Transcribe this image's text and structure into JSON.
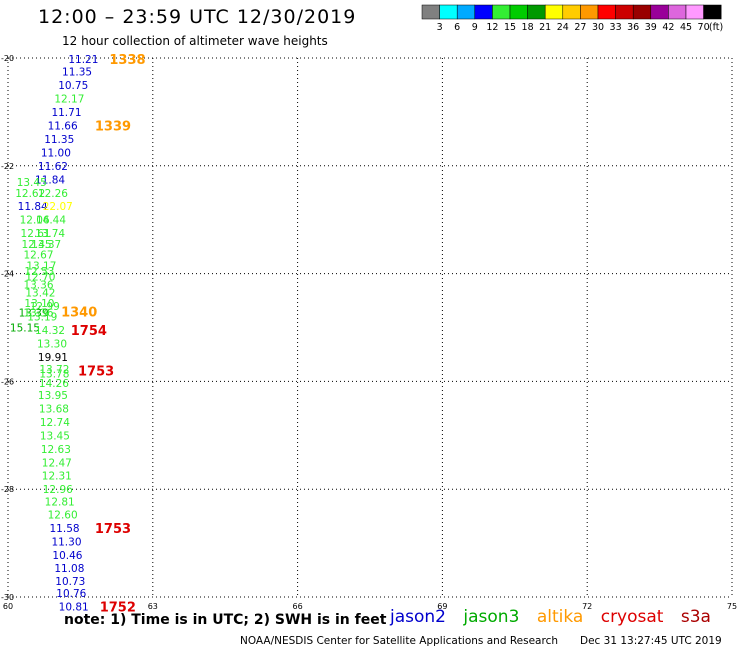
{
  "title": "12:00 – 23:59 UTC 12/30/2019",
  "subtitle": "12 hour collection of altimeter wave heights",
  "note": "note:  1) Time is in UTC; 2) SWH is in feet",
  "credit": "NOAA/NESDIS Center for Satellite Applications and Research",
  "timestamp": "Dec 31 13:27:45 UTC 2019",
  "satellites": [
    {
      "name": "jason2",
      "color": "#0000cc"
    },
    {
      "name": "jason3",
      "color": "#00aa00"
    },
    {
      "name": "altika",
      "color": "#ff9900"
    },
    {
      "name": "cryosat",
      "color": "#dd0000"
    },
    {
      "name": "s3a",
      "color": "#aa0000"
    }
  ],
  "colorbar": {
    "labels": [
      "3",
      "6",
      "9",
      "12",
      "15",
      "18",
      "21",
      "24",
      "27",
      "30",
      "33",
      "36",
      "39",
      "42",
      "45",
      "70"
    ],
    "unit": "(ft)",
    "colors": [
      "#808080",
      "#00ffff",
      "#00aaff",
      "#0000ff",
      "#33ee33",
      "#00cc00",
      "#009900",
      "#ffff00",
      "#ffcc00",
      "#ff9900",
      "#ff0000",
      "#cc0000",
      "#990000",
      "#990099",
      "#dd66dd",
      "#ff99ff",
      "#000000"
    ]
  },
  "chart_data": {
    "type": "scatter",
    "title": "12:00 – 23:59 UTC 12/30/2019",
    "subtitle": "12 hour collection of altimeter wave heights",
    "xlim": [
      60,
      75
    ],
    "ylim": [
      -30,
      -20
    ],
    "x_ticks": [
      "60",
      "63",
      "66",
      "69",
      "72",
      "75"
    ],
    "y_ticks": [
      "-20",
      "-22",
      "-24",
      "-26",
      "-28",
      "-30"
    ],
    "grid": true,
    "swh_points": [
      {
        "text": "11.21",
        "x": 61.25,
        "y": -20.02,
        "color": "#0000cc"
      },
      {
        "text": "11.35",
        "x": 61.12,
        "y": -20.25,
        "color": "#0000cc"
      },
      {
        "text": "10.75",
        "x": 61.04,
        "y": -20.5,
        "color": "#0000cc"
      },
      {
        "text": "12.17",
        "x": 60.96,
        "y": -20.75,
        "color": "#33ee33"
      },
      {
        "text": "11.71",
        "x": 60.9,
        "y": -21.0,
        "color": "#0000cc"
      },
      {
        "text": "11.66",
        "x": 60.82,
        "y": -21.25,
        "color": "#0000cc"
      },
      {
        "text": "11.35",
        "x": 60.75,
        "y": -21.5,
        "color": "#0000cc"
      },
      {
        "text": "11.00",
        "x": 60.68,
        "y": -21.75,
        "color": "#0000cc"
      },
      {
        "text": "11.62",
        "x": 60.62,
        "y": -22.0,
        "color": "#0000cc"
      },
      {
        "text": "11.84",
        "x": 60.56,
        "y": -22.25,
        "color": "#0000cc"
      },
      {
        "text": "13.45",
        "x": 60.18,
        "y": -22.3,
        "color": "#33ee33"
      },
      {
        "text": "12.62",
        "x": 60.15,
        "y": -22.5,
        "color": "#33ee33"
      },
      {
        "text": "12.26",
        "x": 60.62,
        "y": -22.5,
        "color": "#33ee33"
      },
      {
        "text": "11.84",
        "x": 60.2,
        "y": -22.75,
        "color": "#0000cc"
      },
      {
        "text": "22.07",
        "x": 60.72,
        "y": -22.75,
        "color": "#ffff00"
      },
      {
        "text": "12.06",
        "x": 60.24,
        "y": -23.0,
        "color": "#33ee33"
      },
      {
        "text": "14.44",
        "x": 60.58,
        "y": -23.0,
        "color": "#33ee33"
      },
      {
        "text": "12.61",
        "x": 60.26,
        "y": -23.25,
        "color": "#33ee33"
      },
      {
        "text": "13.74",
        "x": 60.56,
        "y": -23.25,
        "color": "#33ee33"
      },
      {
        "text": "12.45",
        "x": 60.28,
        "y": -23.45,
        "color": "#33ee33"
      },
      {
        "text": "13.37",
        "x": 60.48,
        "y": -23.45,
        "color": "#33ee33"
      },
      {
        "text": "12.67",
        "x": 60.32,
        "y": -23.65,
        "color": "#33ee33"
      },
      {
        "text": "13.17",
        "x": 60.38,
        "y": -23.85,
        "color": "#33ee33"
      },
      {
        "text": "12.53",
        "x": 60.34,
        "y": -23.95,
        "color": "#33ee33"
      },
      {
        "text": "12.70",
        "x": 60.36,
        "y": -24.05,
        "color": "#33ee33"
      },
      {
        "text": "13.36",
        "x": 60.32,
        "y": -24.2,
        "color": "#33ee33"
      },
      {
        "text": "13.42",
        "x": 60.36,
        "y": -24.35,
        "color": "#33ee33"
      },
      {
        "text": "13.10",
        "x": 60.34,
        "y": -24.55,
        "color": "#33ee33"
      },
      {
        "text": "12.99",
        "x": 60.45,
        "y": -24.6,
        "color": "#33ee33"
      },
      {
        "text": "13.39",
        "x": 60.22,
        "y": -24.72,
        "color": "#00aa00"
      },
      {
        "text": "13.36",
        "x": 60.32,
        "y": -24.72,
        "color": "#33ee33"
      },
      {
        "text": "13.19",
        "x": 60.4,
        "y": -24.8,
        "color": "#33ee33"
      },
      {
        "text": "15.15",
        "x": 60.04,
        "y": -25.0,
        "color": "#00aa00"
      },
      {
        "text": "14.32",
        "x": 60.56,
        "y": -25.05,
        "color": "#33ee33"
      },
      {
        "text": "13.30",
        "x": 60.6,
        "y": -25.3,
        "color": "#33ee33"
      },
      {
        "text": "19.91",
        "x": 60.62,
        "y": -25.55,
        "color": "#000000"
      },
      {
        "text": "13.72",
        "x": 60.65,
        "y": -25.77,
        "color": "#33ee33"
      },
      {
        "text": "13.78",
        "x": 60.65,
        "y": -25.85,
        "color": "#33ee33"
      },
      {
        "text": "14.26",
        "x": 60.64,
        "y": -26.03,
        "color": "#33ee33"
      },
      {
        "text": "13.95",
        "x": 60.62,
        "y": -26.25,
        "color": "#33ee33"
      },
      {
        "text": "13.68",
        "x": 60.64,
        "y": -26.5,
        "color": "#33ee33"
      },
      {
        "text": "12.74",
        "x": 60.66,
        "y": -26.75,
        "color": "#33ee33"
      },
      {
        "text": "13.45",
        "x": 60.66,
        "y": -27.0,
        "color": "#33ee33"
      },
      {
        "text": "12.63",
        "x": 60.68,
        "y": -27.25,
        "color": "#33ee33"
      },
      {
        "text": "12.47",
        "x": 60.7,
        "y": -27.5,
        "color": "#33ee33"
      },
      {
        "text": "12.31",
        "x": 60.7,
        "y": -27.75,
        "color": "#33ee33"
      },
      {
        "text": "12.96",
        "x": 60.72,
        "y": -28.0,
        "color": "#33ee33"
      },
      {
        "text": "12.81",
        "x": 60.76,
        "y": -28.23,
        "color": "#33ee33"
      },
      {
        "text": "12.60",
        "x": 60.82,
        "y": -28.47,
        "color": "#33ee33"
      },
      {
        "text": "11.58",
        "x": 60.86,
        "y": -28.72,
        "color": "#0000cc"
      },
      {
        "text": "11.30",
        "x": 60.9,
        "y": -28.97,
        "color": "#0000cc"
      },
      {
        "text": "10.46",
        "x": 60.92,
        "y": -29.22,
        "color": "#0000cc"
      },
      {
        "text": "11.08",
        "x": 60.96,
        "y": -29.46,
        "color": "#0000cc"
      },
      {
        "text": "10.73",
        "x": 60.98,
        "y": -29.7,
        "color": "#0000cc"
      },
      {
        "text": "10.76",
        "x": 61.0,
        "y": -29.93,
        "color": "#0000cc"
      },
      {
        "text": "10.81",
        "x": 61.05,
        "y": -30.18,
        "color": "#0000cc"
      }
    ],
    "time_labels": [
      {
        "text": "1338",
        "x": 62.1,
        "y": -20.02,
        "color": "#ff9900"
      },
      {
        "text": "1339",
        "x": 61.8,
        "y": -21.25,
        "color": "#ff9900"
      },
      {
        "text": "1340",
        "x": 61.1,
        "y": -24.7,
        "color": "#ff9900"
      },
      {
        "text": "1754",
        "x": 61.3,
        "y": -25.05,
        "color": "#dd0000"
      },
      {
        "text": "1753",
        "x": 61.45,
        "y": -25.8,
        "color": "#dd0000"
      },
      {
        "text": "1753",
        "x": 61.8,
        "y": -28.72,
        "color": "#dd0000"
      },
      {
        "text": "1752",
        "x": 61.9,
        "y": -30.18,
        "color": "#dd0000"
      }
    ]
  }
}
